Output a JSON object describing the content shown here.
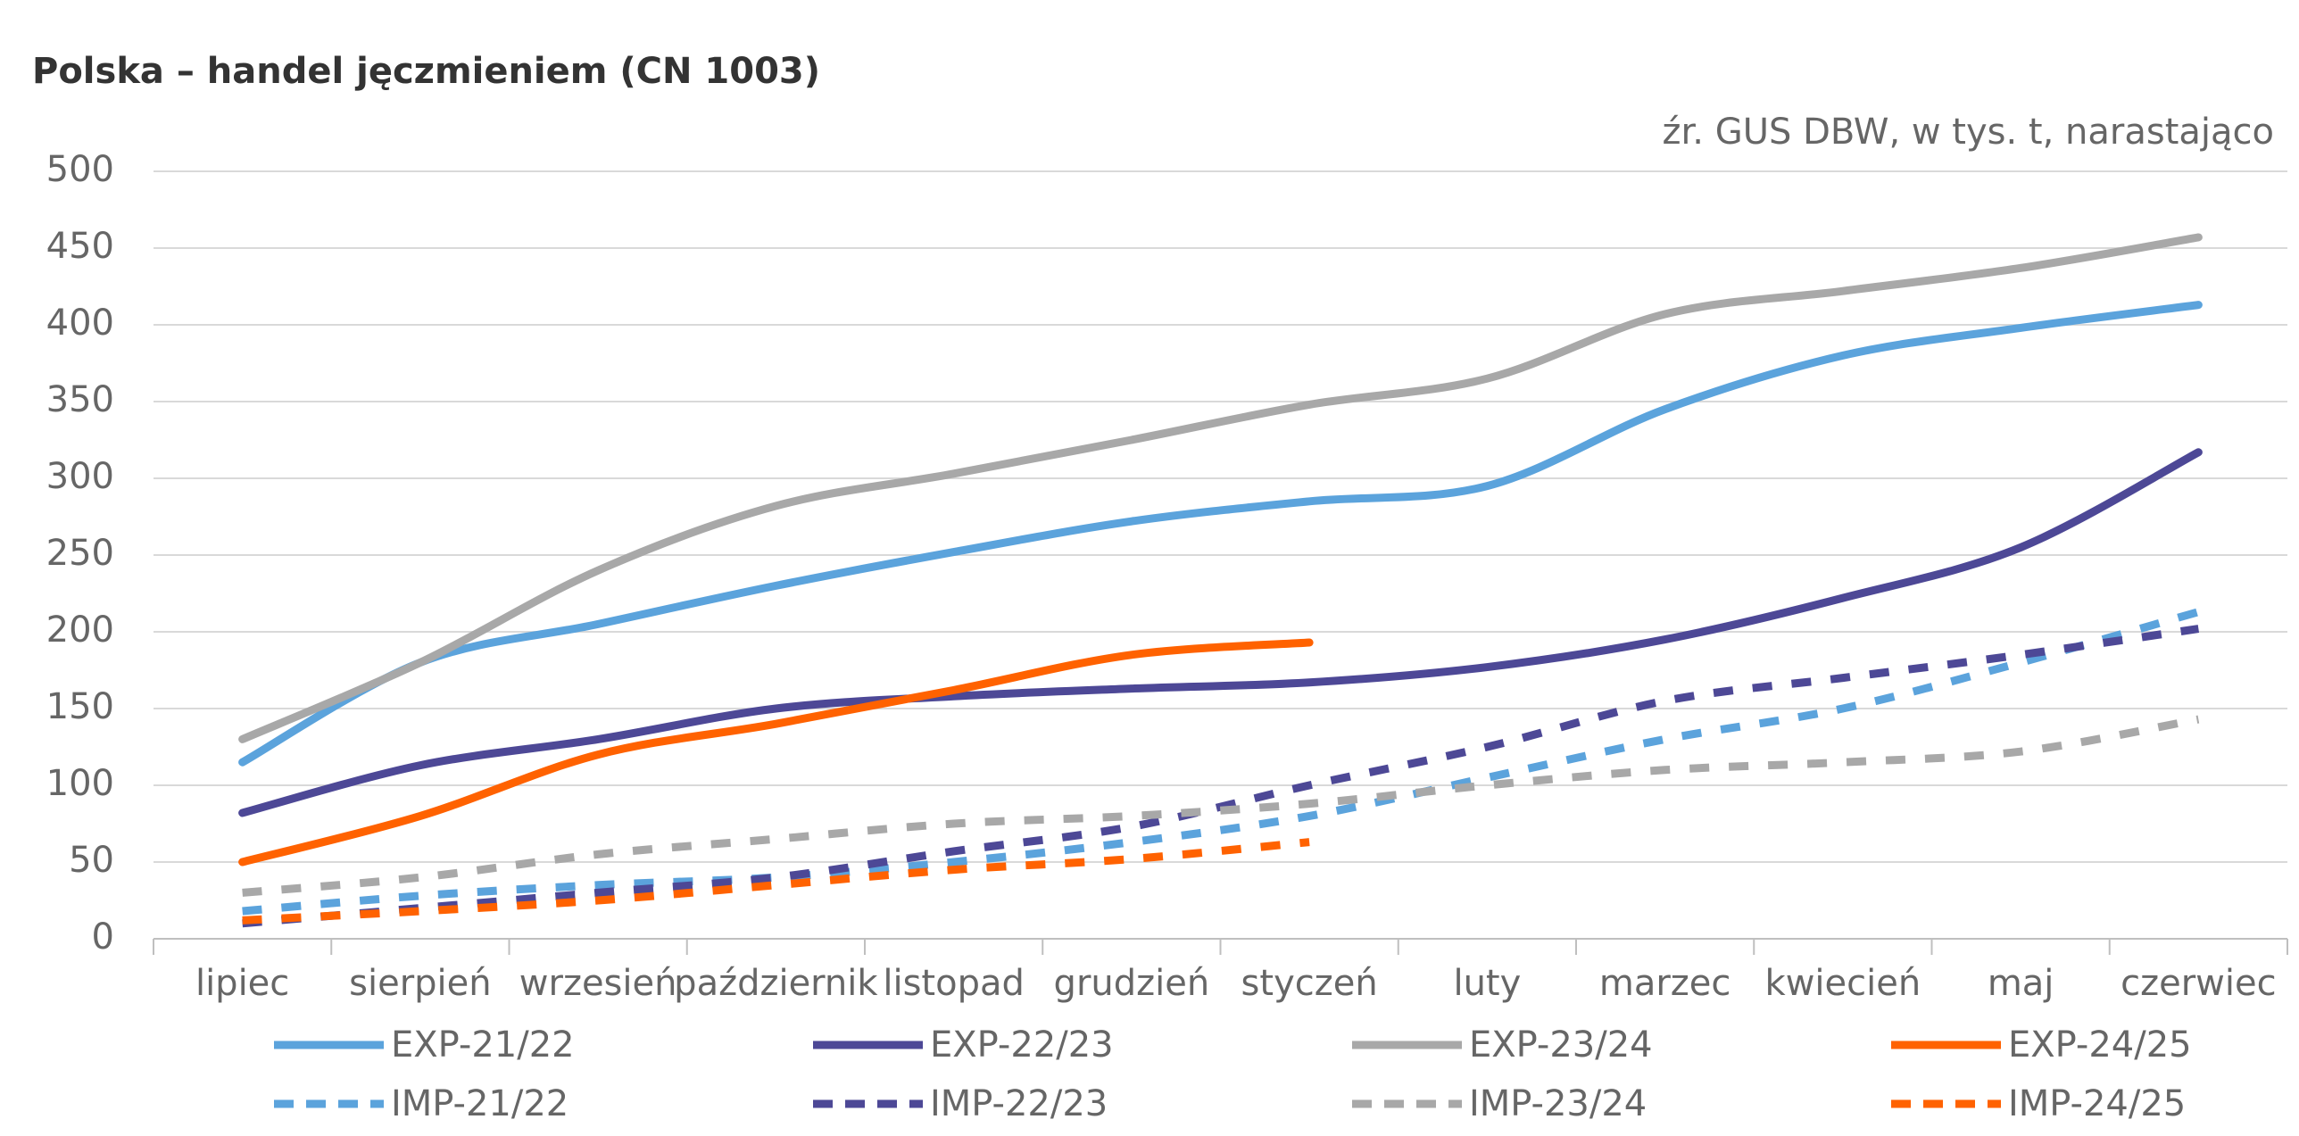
{
  "chart_data": {
    "type": "line",
    "title": "Polska – handel jęczmieniem (CN 1003)",
    "subtitle": "źr. GUS DBW, w tys. t, narastająco",
    "categories": [
      "lipiec",
      "sierpień",
      "wrzesień",
      "październik",
      "listopad",
      "grudzień",
      "styczeń",
      "luty",
      "marzec",
      "kwiecień",
      "maj",
      "czerwiec"
    ],
    "series": [
      {
        "name": "EXP-21/22",
        "color": "#5ba3dc",
        "dashed": false,
        "values": [
          115,
          180,
          205,
          230,
          252,
          272,
          285,
          295,
          345,
          380,
          398,
          413
        ]
      },
      {
        "name": "EXP-22/23",
        "color": "#4d4896",
        "dashed": false,
        "values": [
          82,
          113,
          130,
          150,
          158,
          163,
          167,
          177,
          195,
          222,
          255,
          317
        ]
      },
      {
        "name": "EXP-23/24",
        "color": "#a8a8a8",
        "dashed": false,
        "values": [
          130,
          180,
          240,
          282,
          303,
          325,
          348,
          365,
          407,
          422,
          437,
          457
        ]
      },
      {
        "name": "EXP-24/25",
        "color": "#ff6200",
        "dashed": false,
        "values": [
          50,
          80,
          120,
          140,
          162,
          185,
          193,
          null,
          null,
          null,
          null,
          null
        ]
      },
      {
        "name": "IMP-21/22",
        "color": "#5ba3dc",
        "dashed": true,
        "values": [
          18,
          28,
          35,
          40,
          50,
          63,
          80,
          105,
          130,
          150,
          180,
          213
        ]
      },
      {
        "name": "IMP-22/23",
        "color": "#4d4896",
        "dashed": true,
        "values": [
          10,
          20,
          30,
          40,
          57,
          73,
          100,
          125,
          155,
          170,
          185,
          202
        ]
      },
      {
        "name": "IMP-23/24",
        "color": "#a8a8a8",
        "dashed": true,
        "values": [
          30,
          40,
          55,
          65,
          75,
          80,
          88,
          100,
          110,
          115,
          122,
          143
        ]
      },
      {
        "name": "IMP-24/25",
        "color": "#ff6200",
        "dashed": true,
        "values": [
          12,
          18,
          25,
          35,
          45,
          52,
          63,
          null,
          null,
          null,
          null,
          null
        ]
      }
    ],
    "ylim": [
      0,
      500
    ],
    "yticks": [
      0,
      50,
      100,
      150,
      200,
      250,
      300,
      350,
      400,
      450,
      500
    ],
    "grid": true,
    "legend": "bottom"
  }
}
